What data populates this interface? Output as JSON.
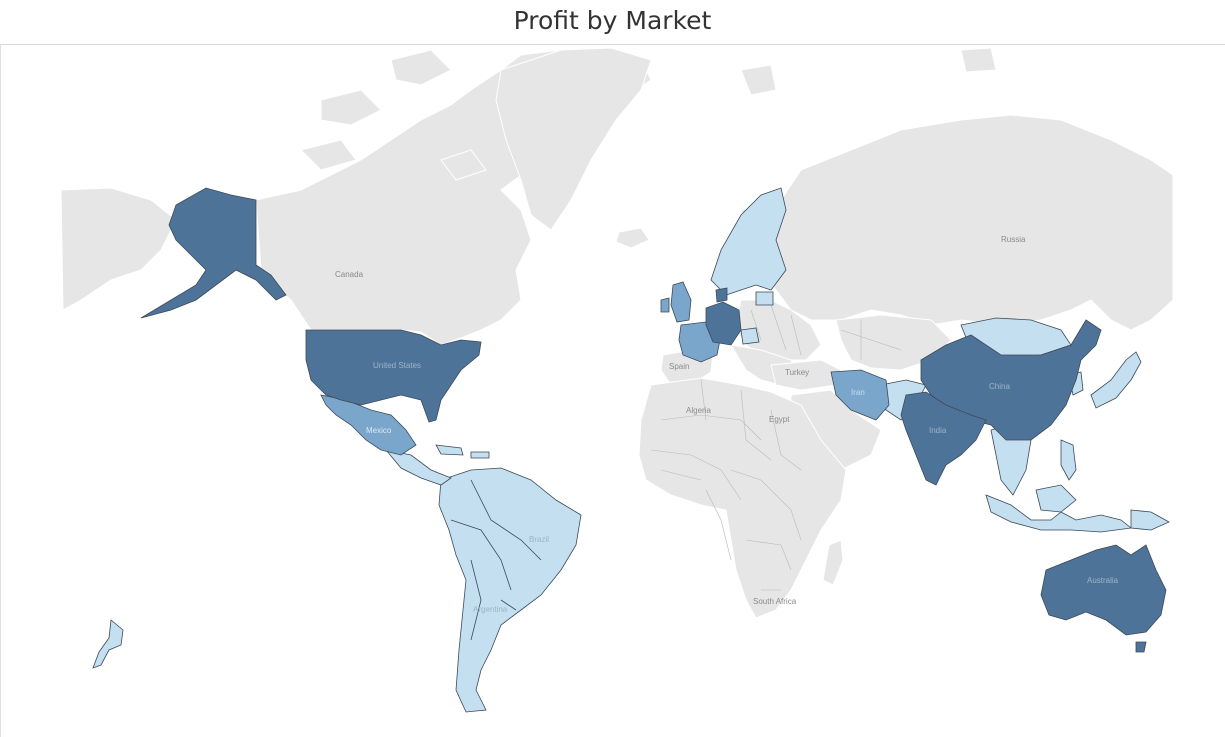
{
  "title": "Profit by Market",
  "colors": {
    "background": "#ffffff",
    "land_no_data": "#e6e6e6",
    "border_no_data": "#ffffff",
    "profit_low": "#c3dff0",
    "profit_mid": "#7aa6cc",
    "profit_high": "#4e7399",
    "data_border": "#3d4a59",
    "label_dark": "#8a8a8a",
    "label_light": "#9fb3c8"
  },
  "map": {
    "country_labels": {
      "canada": "Canada",
      "united_states": "United States",
      "mexico": "Mexico",
      "brazil": "Brazil",
      "argentina": "Argentina",
      "russia": "Russia",
      "spain": "Spain",
      "turkey": "Turkey",
      "algeria": "Algeria",
      "egypt": "Egypt",
      "south_africa": "South Africa",
      "iran": "Iran",
      "india": "India",
      "china": "China",
      "australia": "Australia"
    }
  }
}
